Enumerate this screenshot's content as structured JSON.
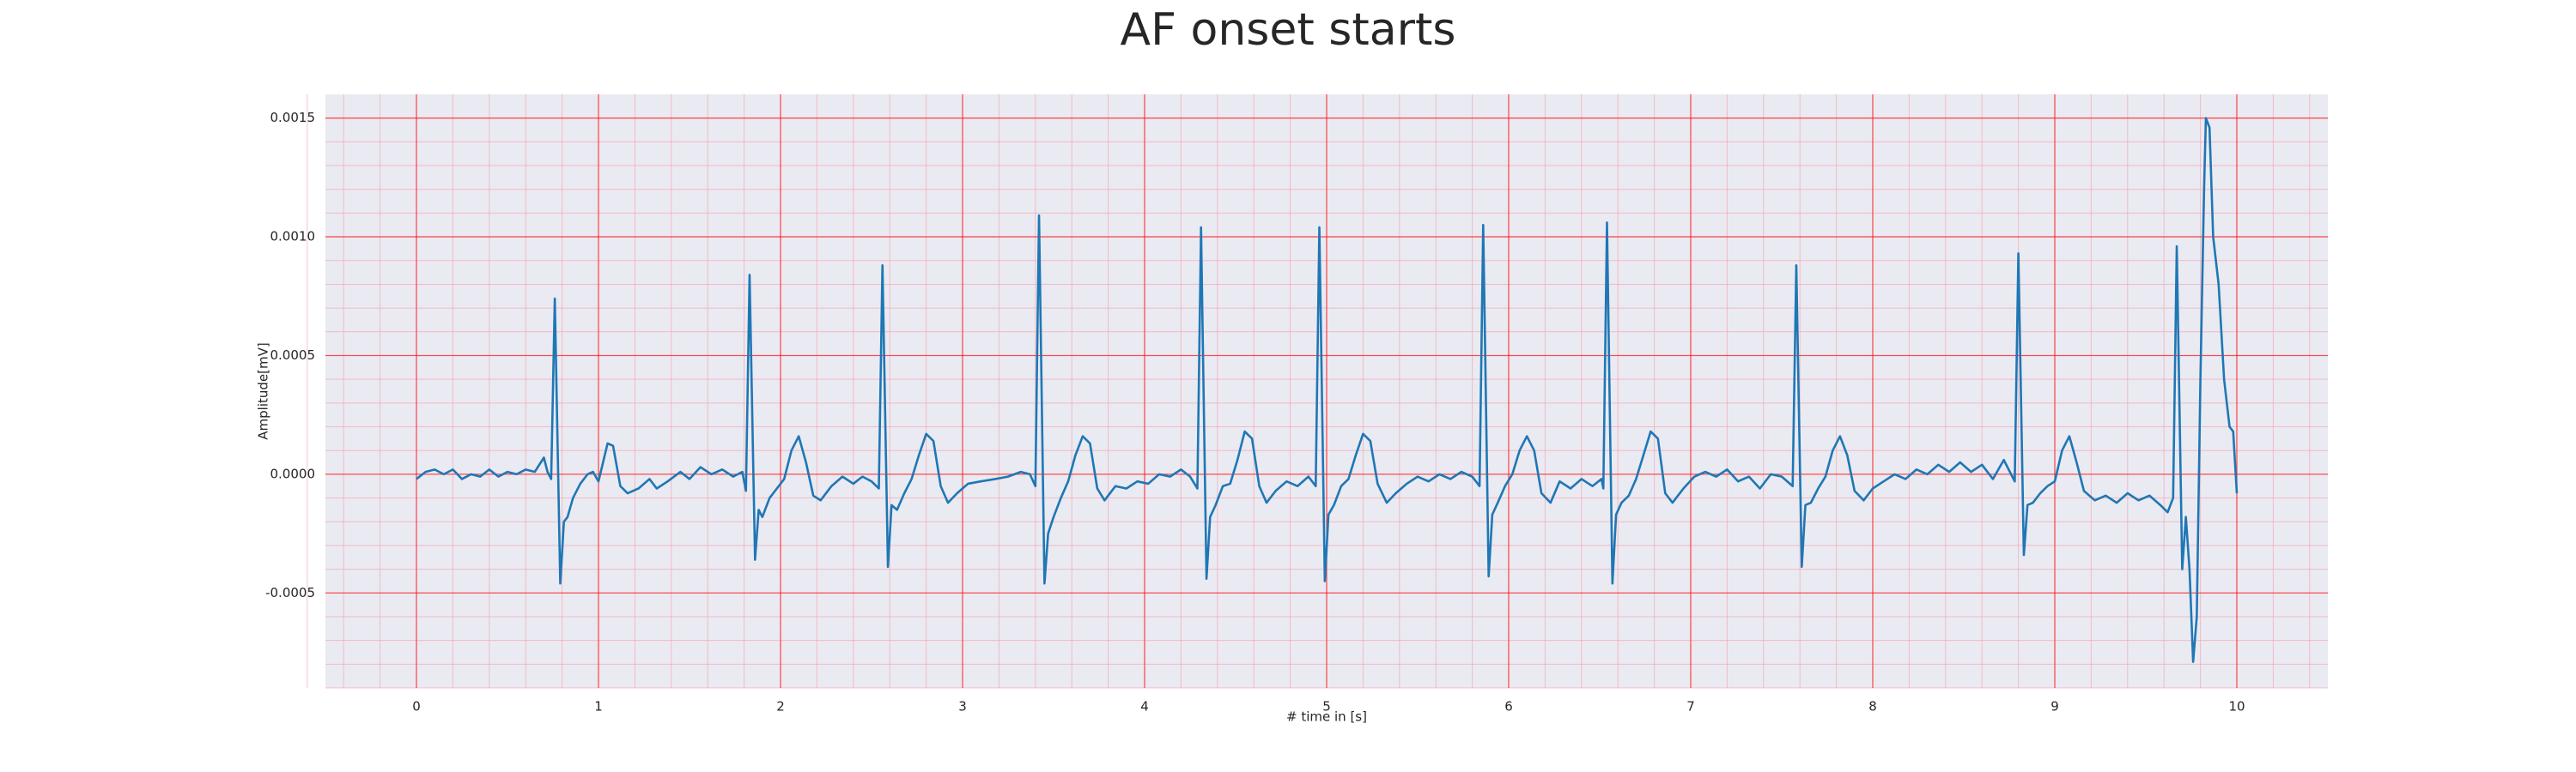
{
  "chart_data": {
    "type": "line",
    "title": "AF onset starts",
    "xlabel": "# time in [s]",
    "ylabel": "Amplitude[mV]",
    "color": "#1f77b4",
    "background": "#eaeaf2",
    "grid": true,
    "grid_color": "#ff0000",
    "minor_grid": true,
    "minor_grid_color": "#f4a6b0",
    "xlim": [
      -0.5,
      10.5
    ],
    "ylim": [
      -0.0009,
      0.0016
    ],
    "xticks": [
      0,
      1,
      2,
      3,
      4,
      5,
      6,
      7,
      8,
      9,
      10
    ],
    "yticks": [
      {
        "value": -0.0005,
        "label": "-0.0005"
      },
      {
        "value": 0,
        "label": "0.0000"
      },
      {
        "value": 0.0005,
        "label": "0.0005"
      },
      {
        "value": 0.001,
        "label": "0.0010"
      },
      {
        "value": 0.0015,
        "label": "0.0015"
      }
    ],
    "x": [
      0,
      0.05,
      0.1,
      0.15,
      0.2,
      0.25,
      0.3,
      0.35,
      0.4,
      0.45,
      0.5,
      0.55,
      0.6,
      0.65,
      0.7,
      0.72,
      0.74,
      0.76,
      0.79,
      0.81,
      0.83,
      0.86,
      0.9,
      0.94,
      0.97,
      1.0,
      1.05,
      1.08,
      1.12,
      1.16,
      1.22,
      1.28,
      1.32,
      1.38,
      1.45,
      1.5,
      1.56,
      1.62,
      1.68,
      1.74,
      1.79,
      1.81,
      1.83,
      1.86,
      1.88,
      1.9,
      1.94,
      1.98,
      2.02,
      2.06,
      2.1,
      2.14,
      2.18,
      2.22,
      2.28,
      2.34,
      2.4,
      2.45,
      2.5,
      2.54,
      2.56,
      2.59,
      2.61,
      2.64,
      2.68,
      2.72,
      2.76,
      2.8,
      2.84,
      2.88,
      2.92,
      2.97,
      3.03,
      3.1,
      3.18,
      3.25,
      3.32,
      3.37,
      3.4,
      3.42,
      3.45,
      3.47,
      3.5,
      3.54,
      3.58,
      3.62,
      3.66,
      3.7,
      3.74,
      3.78,
      3.84,
      3.9,
      3.96,
      4.02,
      4.08,
      4.14,
      4.2,
      4.25,
      4.29,
      4.31,
      4.34,
      4.36,
      4.39,
      4.43,
      4.47,
      4.51,
      4.55,
      4.59,
      4.63,
      4.67,
      4.72,
      4.78,
      4.84,
      4.9,
      4.94,
      4.96,
      4.99,
      5.01,
      5.04,
      5.08,
      5.12,
      5.16,
      5.2,
      5.24,
      5.28,
      5.33,
      5.38,
      5.44,
      5.5,
      5.56,
      5.62,
      5.68,
      5.74,
      5.8,
      5.84,
      5.86,
      5.89,
      5.91,
      5.94,
      5.98,
      6.02,
      6.06,
      6.1,
      6.14,
      6.18,
      6.23,
      6.28,
      6.34,
      6.4,
      6.46,
      6.51,
      6.52,
      6.54,
      6.57,
      6.59,
      6.62,
      6.66,
      6.7,
      6.74,
      6.78,
      6.82,
      6.86,
      6.9,
      6.96,
      7.02,
      7.08,
      7.14,
      7.2,
      7.26,
      7.32,
      7.38,
      7.44,
      7.5,
      7.56,
      7.58,
      7.61,
      7.63,
      7.66,
      7.7,
      7.74,
      7.78,
      7.82,
      7.86,
      7.9,
      7.95,
      8.0,
      8.06,
      8.12,
      8.18,
      8.24,
      8.3,
      8.36,
      8.42,
      8.48,
      8.54,
      8.6,
      8.66,
      8.72,
      8.76,
      8.78,
      8.8,
      8.83,
      8.85,
      8.88,
      8.92,
      8.96,
      9.0,
      9.04,
      9.08,
      9.12,
      9.16,
      9.22,
      9.28,
      9.34,
      9.4,
      9.46,
      9.52,
      9.58,
      9.62,
      9.65,
      9.67,
      9.7,
      9.72,
      9.74,
      9.76,
      9.78,
      9.8,
      9.82,
      9.83,
      9.85,
      9.87,
      9.9,
      9.93,
      9.96,
      9.98,
      10.0
    ],
    "values": [
      -2e-05,
      1e-05,
      2e-05,
      0.0,
      2e-05,
      -2e-05,
      0.0,
      -1e-05,
      2e-05,
      -1e-05,
      1e-05,
      0.0,
      2e-05,
      1e-05,
      7e-05,
      1e-05,
      -2e-05,
      0.00074,
      -0.00046,
      -0.0002,
      -0.00018,
      -0.0001,
      -4e-05,
      0.0,
      1e-05,
      -3e-05,
      0.00013,
      0.00012,
      -5e-05,
      -8e-05,
      -6e-05,
      -2e-05,
      -6e-05,
      -3e-05,
      1e-05,
      -2e-05,
      3e-05,
      0.0,
      2e-05,
      -1e-05,
      1e-05,
      -7e-05,
      0.00084,
      -0.00036,
      -0.00015,
      -0.00018,
      -0.0001,
      -6e-05,
      -2e-05,
      0.0001,
      0.00016,
      5e-05,
      -9e-05,
      -0.00011,
      -5e-05,
      -1e-05,
      -4e-05,
      -1e-05,
      -3e-05,
      -6e-05,
      0.00088,
      -0.00039,
      -0.00013,
      -0.00015,
      -8e-05,
      -2e-05,
      8e-05,
      0.00017,
      0.00014,
      -5e-05,
      -0.00012,
      -8e-05,
      -4e-05,
      -3e-05,
      -2e-05,
      -1e-05,
      1e-05,
      0.0,
      -5e-05,
      0.00109,
      -0.00046,
      -0.00025,
      -0.00018,
      -0.0001,
      -3e-05,
      8e-05,
      0.00016,
      0.00013,
      -6e-05,
      -0.00011,
      -5e-05,
      -6e-05,
      -3e-05,
      -4e-05,
      0.0,
      -1e-05,
      2e-05,
      -1e-05,
      -6e-05,
      0.00104,
      -0.00044,
      -0.00018,
      -0.00013,
      -5e-05,
      -4e-05,
      6e-05,
      0.00018,
      0.00015,
      -5e-05,
      -0.00012,
      -7e-05,
      -3e-05,
      -5e-05,
      -1e-05,
      -5e-05,
      0.00104,
      -0.00045,
      -0.00017,
      -0.00013,
      -5e-05,
      -2e-05,
      8e-05,
      0.00017,
      0.00014,
      -4e-05,
      -0.00012,
      -8e-05,
      -4e-05,
      -1e-05,
      -3e-05,
      0.0,
      -2e-05,
      1e-05,
      -1e-05,
      -5e-05,
      0.00105,
      -0.00043,
      -0.00017,
      -0.00012,
      -5e-05,
      0.0,
      0.0001,
      0.00016,
      0.0001,
      -8e-05,
      -0.00012,
      -3e-05,
      -6e-05,
      -2e-05,
      -5e-05,
      -2e-05,
      -6e-05,
      0.00106,
      -0.00046,
      -0.00017,
      -0.00012,
      -9e-05,
      -2e-05,
      8e-05,
      0.00018,
      0.00015,
      -8e-05,
      -0.00012,
      -6e-05,
      -1e-05,
      1e-05,
      -1e-05,
      2e-05,
      -3e-05,
      -1e-05,
      -6e-05,
      0.0,
      -1e-05,
      -5e-05,
      0.00088,
      -0.00039,
      -0.00013,
      -0.00012,
      -6e-05,
      -1e-05,
      0.0001,
      0.00016,
      8e-05,
      -7e-05,
      -0.00011,
      -6e-05,
      -3e-05,
      0.0,
      -2e-05,
      2e-05,
      0.0,
      4e-05,
      1e-05,
      5e-05,
      1e-05,
      4e-05,
      -2e-05,
      6e-05,
      0.0,
      -3e-05,
      0.00093,
      -0.00034,
      -0.00013,
      -0.00012,
      -8e-05,
      -5e-05,
      -3e-05,
      0.0001,
      0.00016,
      5e-05,
      -7e-05,
      -0.00011,
      -9e-05,
      -0.00012,
      -8e-05,
      -0.00011,
      -9e-05,
      -0.00013,
      -0.00016,
      -0.0001,
      0.00096,
      -0.0004,
      -0.00018,
      -0.0004,
      -0.00079,
      -0.0006,
      0.0004,
      0.0012,
      0.0015,
      0.00146,
      0.001,
      0.0008,
      0.0004,
      0.0002,
      0.00018,
      -8e-05
    ]
  }
}
